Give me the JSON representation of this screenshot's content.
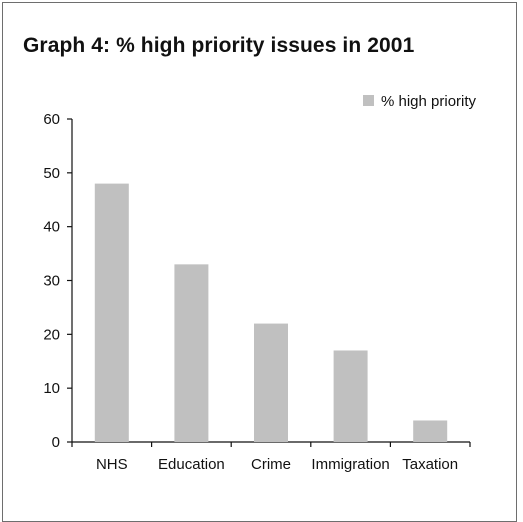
{
  "chart_data": {
    "type": "bar",
    "title": "Graph 4: % high priority issues in 2001",
    "categories": [
      "NHS",
      "Education",
      "Crime",
      "Immigration",
      "Taxation"
    ],
    "series": [
      {
        "name": "% high priority",
        "values": [
          48,
          33,
          22,
          17,
          4
        ],
        "color": "#c0c0c0"
      }
    ],
    "ylim": [
      0,
      60
    ],
    "yticks": [
      "0",
      "10",
      "20",
      "30",
      "40",
      "50",
      "60"
    ],
    "xlabel": "",
    "ylabel": "",
    "grid": false,
    "legend": "top-right"
  },
  "colors": {
    "bar": "#c0c0c0",
    "axis": "#111111",
    "frame": "#6e6e6e"
  }
}
